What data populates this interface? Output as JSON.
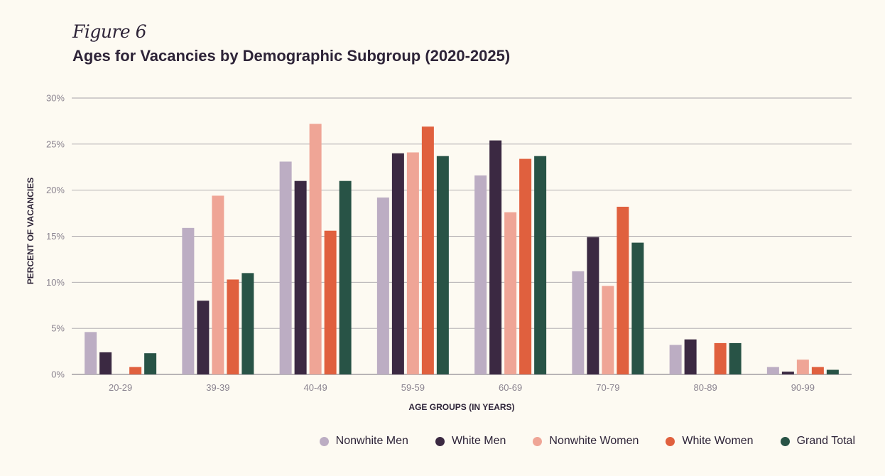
{
  "header": {
    "figure_label": "Figure 6",
    "title": "Ages for Vacancies by Demographic Subgroup (2020-2025)"
  },
  "chart_data": {
    "type": "bar",
    "title": "Ages for Vacancies by Demographic Subgroup (2020-2025)",
    "xlabel": "AGE GROUPS (IN YEARS)",
    "ylabel": "PERCENT OF VACANCIES",
    "ylim": [
      0,
      30
    ],
    "yticks": [
      0,
      5,
      10,
      15,
      20,
      25,
      30
    ],
    "ytick_labels": [
      "0%",
      "5%",
      "10%",
      "15%",
      "20%",
      "25%",
      "30%"
    ],
    "grid": true,
    "legend_position": "bottom-right",
    "categories": [
      "20-29",
      "39-39",
      "40-49",
      "59-59",
      "60-69",
      "70-79",
      "80-89",
      "90-99"
    ],
    "series": [
      {
        "name": "Nonwhite Men",
        "color": "#bcadc3",
        "values": [
          4.6,
          15.9,
          23.1,
          19.2,
          21.6,
          11.2,
          3.2,
          0.8
        ]
      },
      {
        "name": "White Men",
        "color": "#3b2942",
        "values": [
          2.4,
          8.0,
          21.0,
          24.0,
          25.4,
          14.9,
          3.8,
          0.3
        ]
      },
      {
        "name": "Nonwhite Women",
        "color": "#efa596",
        "values": [
          0,
          19.4,
          27.2,
          24.1,
          17.6,
          9.6,
          0,
          1.6
        ]
      },
      {
        "name": "White Women",
        "color": "#e0603e",
        "values": [
          0.8,
          10.3,
          15.6,
          26.9,
          23.4,
          18.2,
          3.4,
          0.8
        ]
      },
      {
        "name": "Grand Total",
        "color": "#285346",
        "values": [
          2.3,
          11.0,
          21.0,
          23.7,
          23.7,
          14.3,
          3.4,
          0.5
        ]
      }
    ]
  },
  "legend": {
    "items": [
      "Nonwhite Men",
      "White Men",
      "Nonwhite Women",
      "White Women",
      "Grand Total"
    ]
  }
}
